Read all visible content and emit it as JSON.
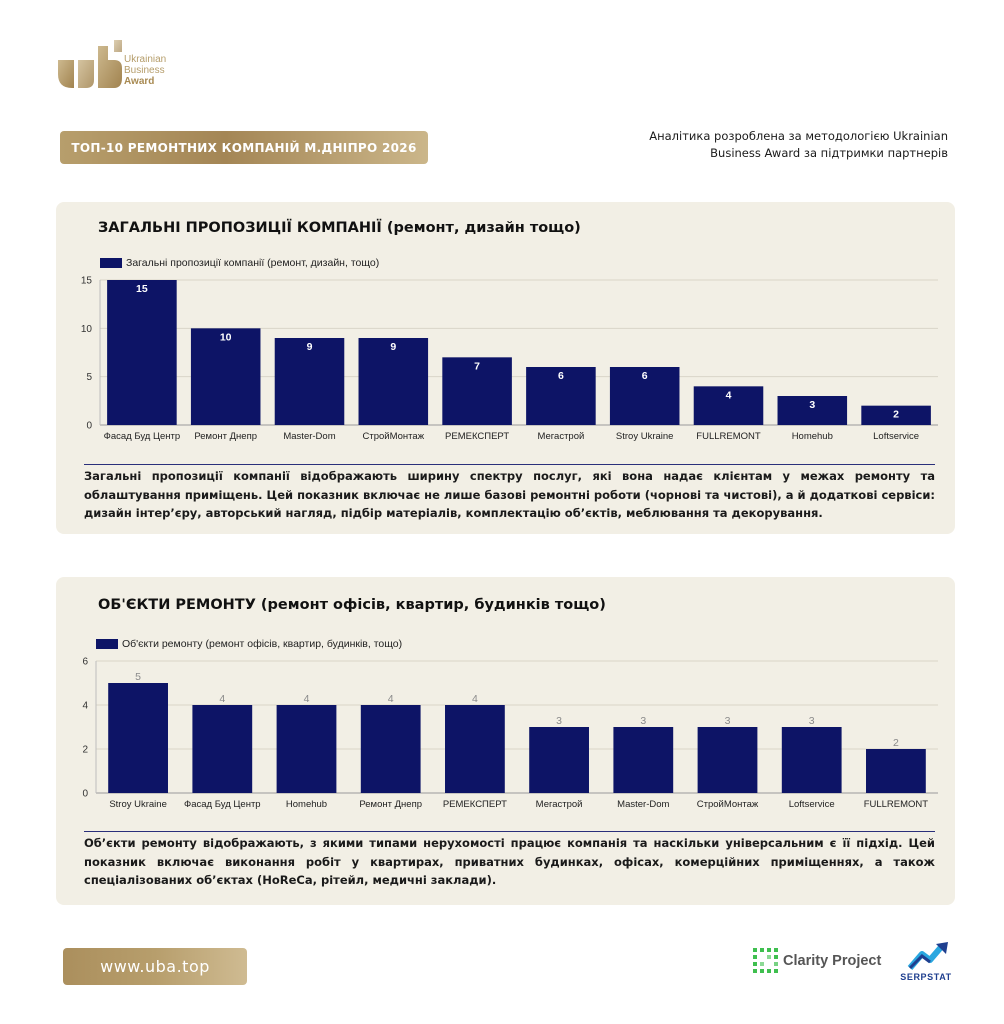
{
  "brand": {
    "logo_lines": [
      "Ukrainian",
      "Business",
      "Award"
    ],
    "accent_gold": "#b79e6c",
    "bar_color": "#0d1466",
    "icon": "uba-logo-icon"
  },
  "header": {
    "title": "ТОП-10 РЕМОНТНИХ КОМПАНІЙ М.ДНІПРО 2026",
    "note": "Аналітика розроблена за методологією Ukrainian Business Award за підтримки партнерів"
  },
  "chart_data": [
    {
      "type": "bar",
      "title": "ЗАГАЛЬНІ ПРОПОЗИЦІЇ КОМПАНІЇ (ремонт, дизайн тощо)",
      "categories": [
        "Фасад Буд Центр",
        "Ремонт Днепр",
        "Master-Dom",
        "СтройМонтаж",
        "РЕМЕКСПЕРТ",
        "Мегастрой",
        "Stroy Ukraine",
        "FULLREMONT",
        "Homehub",
        "Loftservice"
      ],
      "series": [
        {
          "name": "Загальні пропозиції компанії (ремонт, дизайн, тощо)",
          "values": [
            15,
            10,
            9,
            9,
            7,
            6,
            6,
            4,
            3,
            2
          ]
        }
      ],
      "yticks": [
        0,
        5,
        10,
        15
      ],
      "ylim": [
        0,
        15
      ],
      "legend": "top-left",
      "grid": true,
      "data_labels": "inside-top-white"
    },
    {
      "type": "bar",
      "title": "ОБ'ЄКТИ РЕМОНТУ (ремонт офісів, квартир, будинків тощо)",
      "categories": [
        "Stroy Ukraine",
        "Фасад Буд Центр",
        "Homehub",
        "Ремонт Днепр",
        "РЕМЕКСПЕРТ",
        "Мегастрой",
        "Master-Dom",
        "СтройМонтаж",
        "Loftservice",
        "FULLREMONT"
      ],
      "series": [
        {
          "name": "Об'єкти ремонту (ремонт офісів, квартир, будинків, тощо)",
          "values": [
            5,
            4,
            4,
            4,
            4,
            3,
            3,
            3,
            3,
            2
          ]
        }
      ],
      "yticks": [
        0,
        2,
        4,
        6
      ],
      "ylim": [
        0,
        6
      ],
      "legend": "top-left",
      "grid": true,
      "data_labels": "above-gray"
    }
  ],
  "descriptions": [
    "Загальні пропозиції компанії відображають ширину спектру послуг, які вона надає клієнтам у межах ремонту та облаштування приміщень. Цей показник включає не лише базові ремонтні роботи (чорнові та чистові), а й додаткові сервіси: дизайн інтер’єру, авторський нагляд, підбір матеріалів, комплектацію об’єктів, меблювання та декорування.",
    "Об’єкти ремонту відображають, з якими типами нерухомості працює компанія та наскільки універсальним є її підхід. Цей показник включає виконання робіт у квартирах, приватних будинках, офісах, комерційних приміщеннях, а також спеціалізованих об’єктах (HoReCa, рітейл, медичні заклади)."
  ],
  "footer": {
    "site": "www.uba.top",
    "partner1": "Clarity Project",
    "partner2": "SERPSTAT",
    "partner1_icon": "clarity-project-logo-icon",
    "partner2_icon": "serpstat-logo-icon"
  }
}
